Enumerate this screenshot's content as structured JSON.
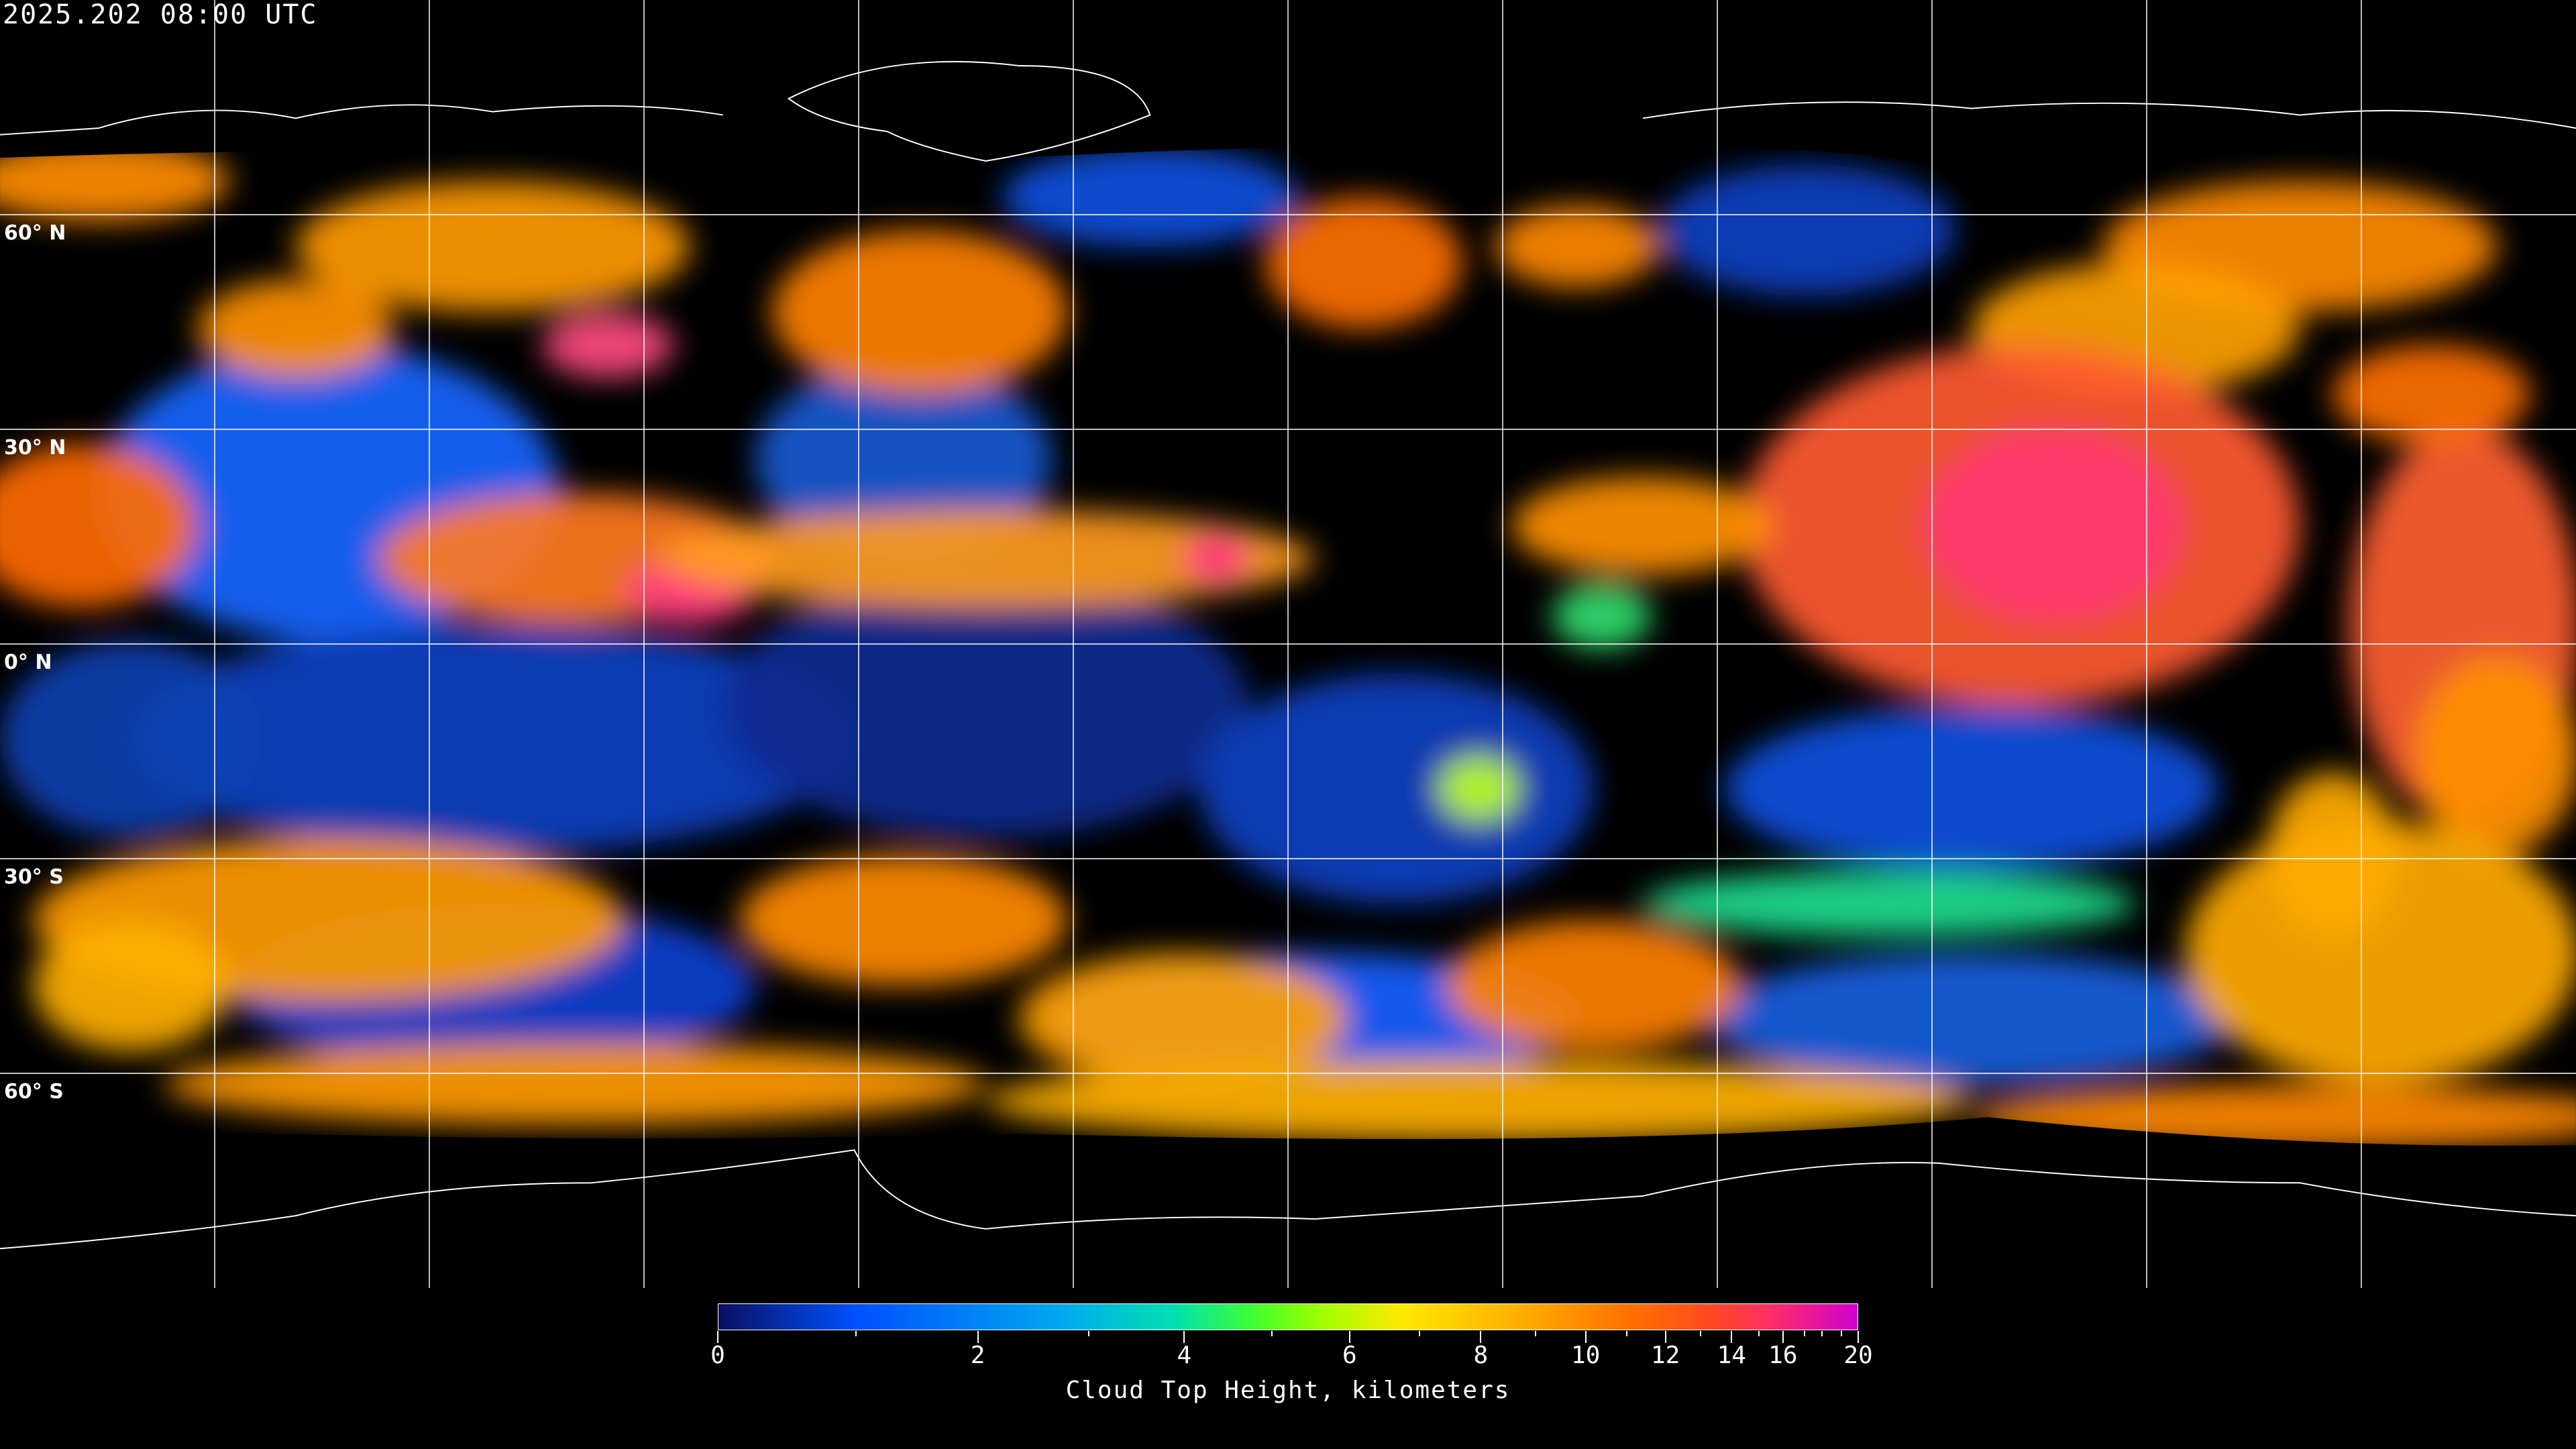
{
  "header": {
    "timestamp": "2025.202 08:00 UTC"
  },
  "map": {
    "projection": "equirectangular",
    "grid_spacing_degrees": 30,
    "lat_labels": [
      "60° N",
      "30° N",
      "0° N",
      "30° S",
      "60° S"
    ],
    "coastline_color": "#ffffff",
    "grid_color": "#ffffff"
  },
  "colorbar": {
    "title": "Cloud Top Height, kilometers",
    "range": [
      0,
      20
    ],
    "tick_labels": [
      "0",
      "2",
      "4",
      "6",
      "8",
      "10",
      "12",
      "14",
      "16",
      "20"
    ],
    "minor_ticks": [
      1,
      3,
      5,
      7,
      9,
      11,
      13,
      15,
      17,
      18,
      19
    ],
    "colors": [
      "#0a1060",
      "#0050ff",
      "#00a8f0",
      "#00e0b0",
      "#40ff30",
      "#a0ff00",
      "#ffe800",
      "#ffb000",
      "#ff7000",
      "#ff4a20",
      "#ff3060",
      "#d000d0"
    ]
  }
}
